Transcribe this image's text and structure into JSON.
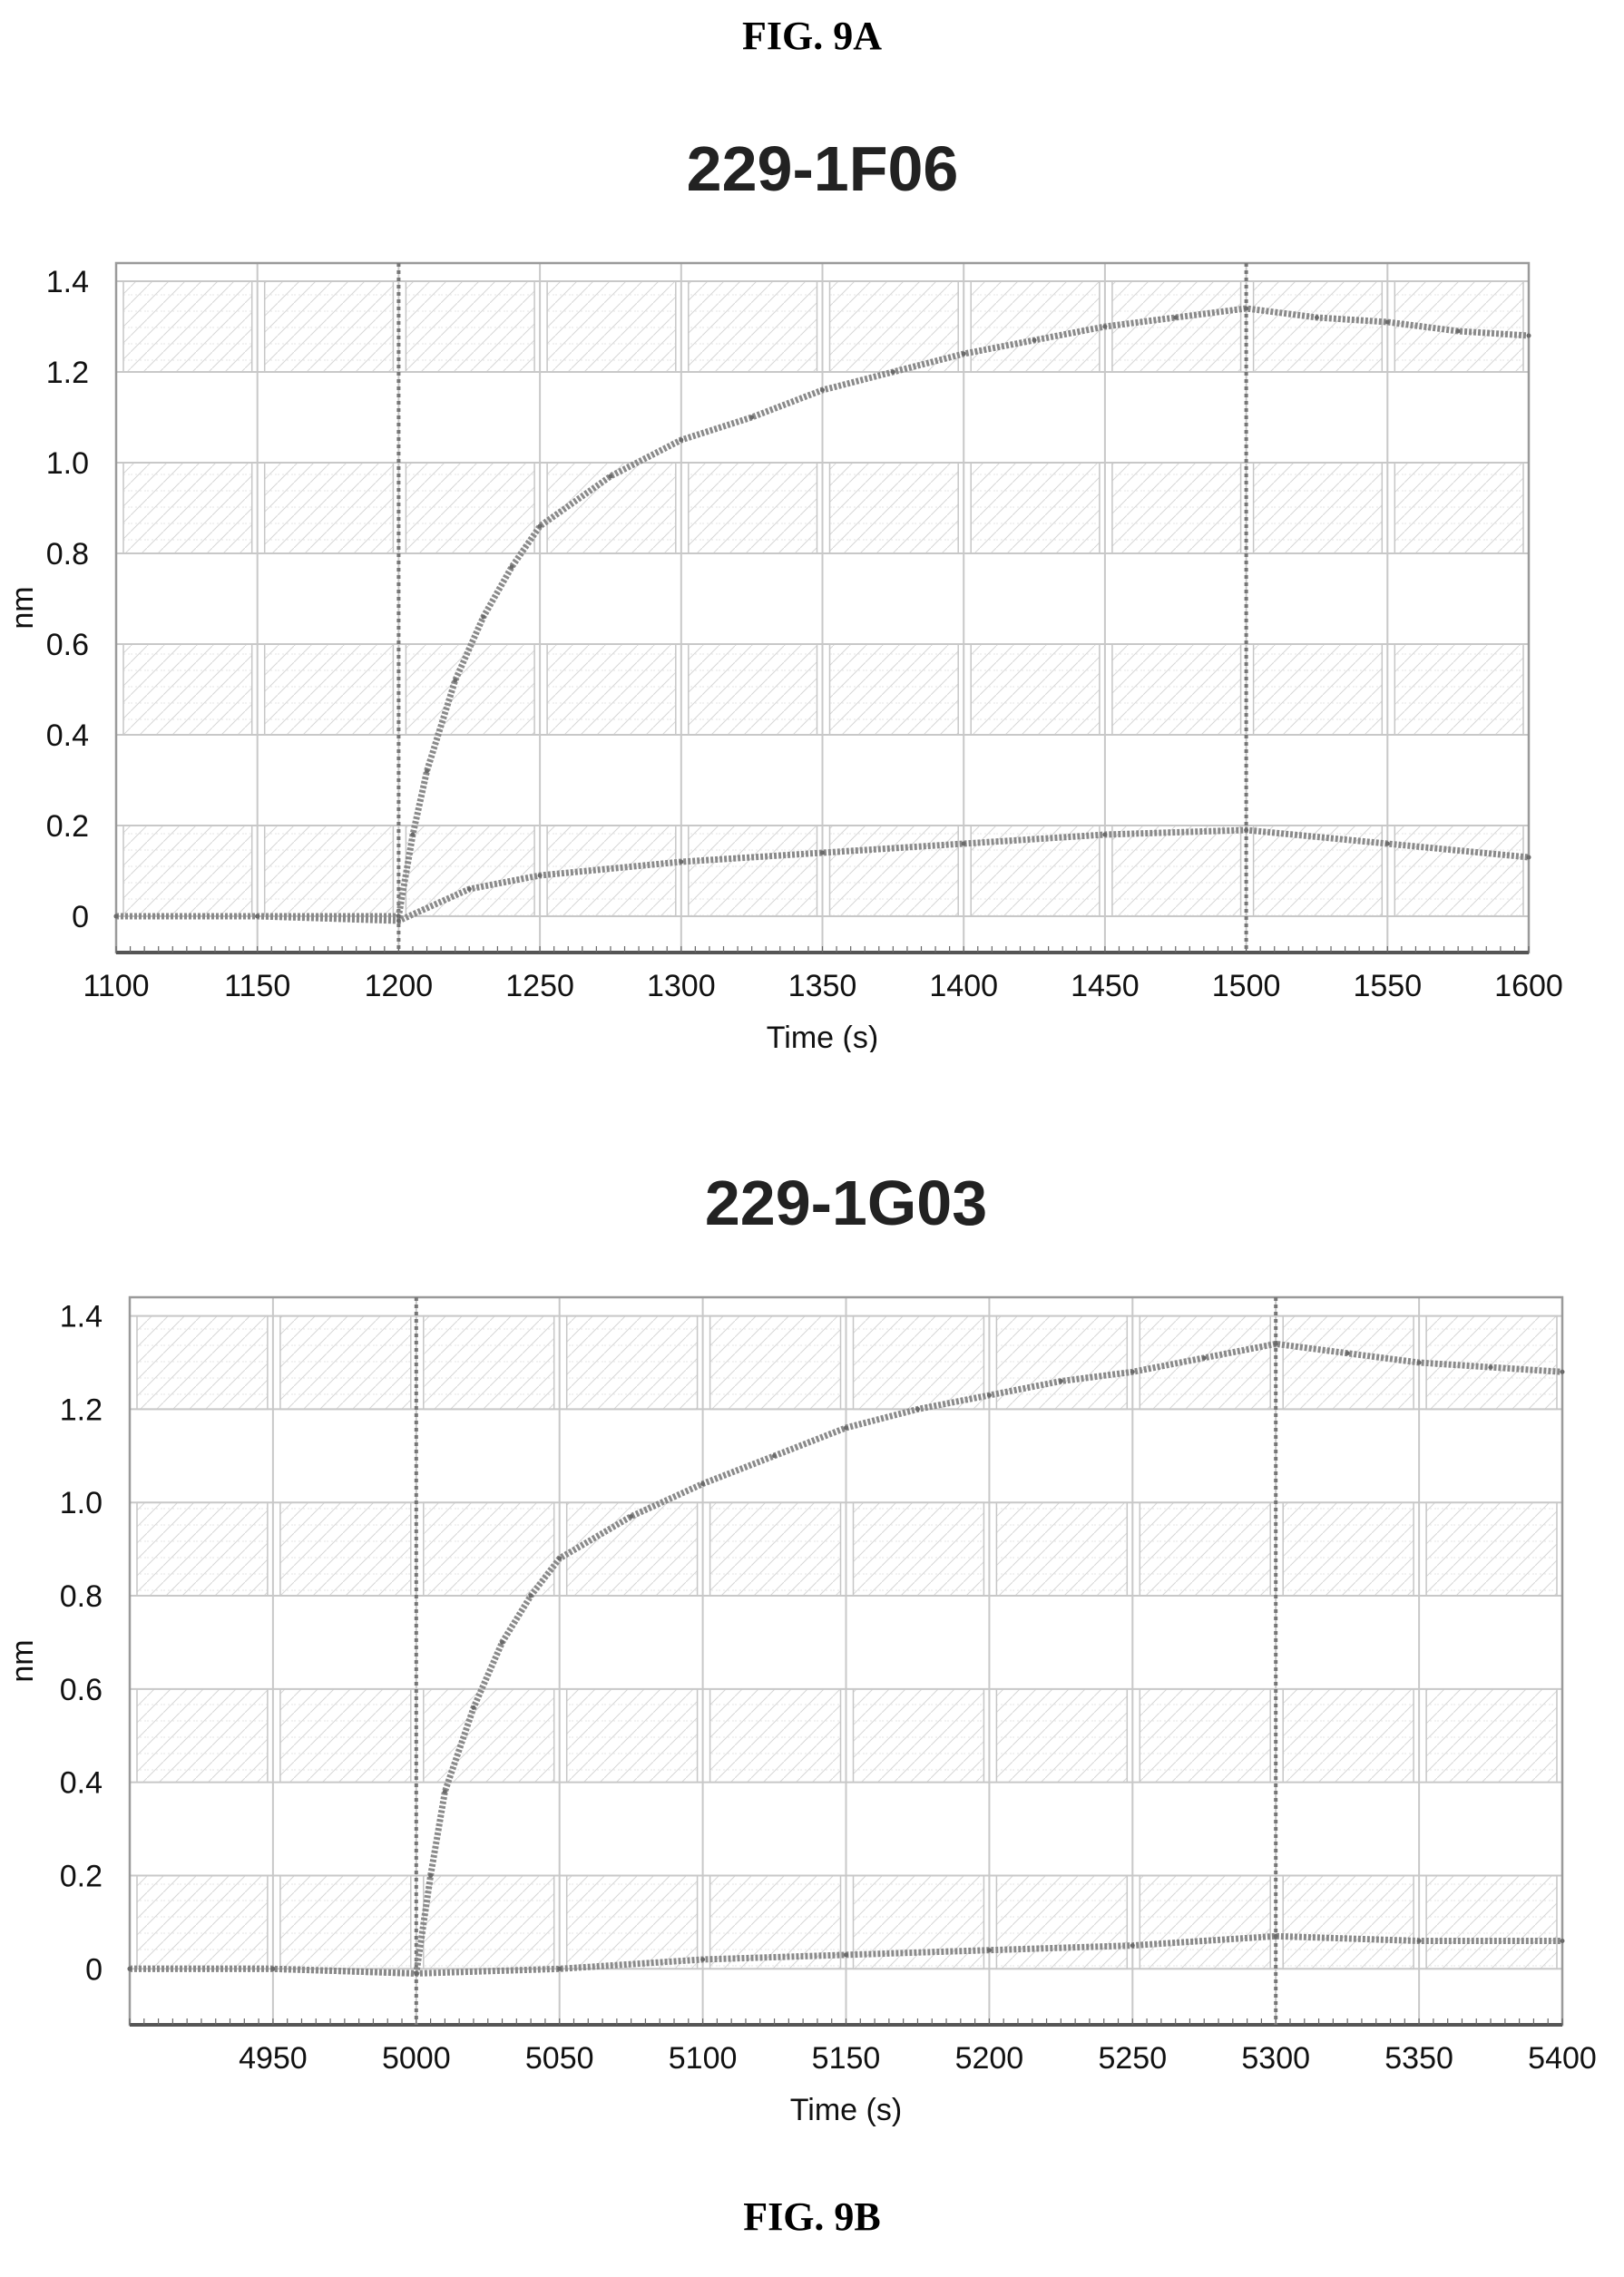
{
  "figure_labels": {
    "top": "FIG. 9A",
    "bottom": "FIG. 9B"
  },
  "chart_data": [
    {
      "type": "line",
      "title": "229-1F06",
      "xlabel": "Time (s)",
      "ylabel": "nm",
      "xlim": [
        1100,
        1600
      ],
      "ylim": [
        -0.08,
        1.44
      ],
      "xticks": [
        1100,
        1150,
        1200,
        1250,
        1300,
        1350,
        1400,
        1450,
        1500,
        1550,
        1600
      ],
      "xtick_labels": [
        "1100",
        "1150",
        "1200",
        "1250",
        "1300",
        "1350",
        "1400",
        "1450",
        "1500",
        "1550",
        "1600"
      ],
      "yticks": [
        0,
        0.2,
        0.4,
        0.6,
        0.8,
        1.0,
        1.2,
        1.4
      ],
      "ytick_labels": [
        "0",
        "0.2",
        "0.4",
        "0.6",
        "0.8",
        "1.0",
        "1.2",
        "1.4"
      ],
      "grid": true,
      "vlines": [
        1200,
        1500
      ],
      "series": [
        {
          "x": [
            1100,
            1150,
            1200,
            1205,
            1210,
            1220,
            1230,
            1240,
            1250,
            1275,
            1300,
            1325,
            1350,
            1375,
            1400,
            1425,
            1450,
            1475,
            1500,
            1525,
            1550,
            1575,
            1600
          ],
          "y": [
            0.0,
            0.0,
            0.0,
            0.18,
            0.32,
            0.52,
            0.66,
            0.77,
            0.86,
            0.97,
            1.05,
            1.1,
            1.16,
            1.2,
            1.24,
            1.27,
            1.3,
            1.32,
            1.34,
            1.32,
            1.31,
            1.29,
            1.28
          ]
        },
        {
          "x": [
            1100,
            1150,
            1200,
            1225,
            1250,
            1300,
            1350,
            1400,
            1450,
            1500,
            1550,
            1600
          ],
          "y": [
            0.0,
            0.0,
            -0.01,
            0.06,
            0.09,
            0.12,
            0.14,
            0.16,
            0.18,
            0.19,
            0.16,
            0.13
          ]
        }
      ]
    },
    {
      "type": "line",
      "title": "229-1G03",
      "xlabel": "Time (s)",
      "ylabel": "nm",
      "xlim": [
        4900,
        5400
      ],
      "ylim": [
        -0.12,
        1.44
      ],
      "xticks": [
        4950,
        5000,
        5050,
        5100,
        5150,
        5200,
        5250,
        5300,
        5350,
        5400
      ],
      "xtick_labels": [
        "4950",
        "5000",
        "5050",
        "5100",
        "5150",
        "5200",
        "5250",
        "5300",
        "5350",
        "5400"
      ],
      "yticks": [
        0,
        0.2,
        0.4,
        0.6,
        0.8,
        1.0,
        1.2,
        1.4
      ],
      "ytick_labels": [
        "0",
        "0.2",
        "0.4",
        "0.6",
        "0.8",
        "1.0",
        "1.2",
        "1.4"
      ],
      "grid": true,
      "vlines": [
        5000,
        5300
      ],
      "series": [
        {
          "x": [
            4900,
            4950,
            5000,
            5005,
            5010,
            5020,
            5030,
            5040,
            5050,
            5075,
            5100,
            5125,
            5150,
            5175,
            5200,
            5225,
            5250,
            5275,
            5300,
            5325,
            5350,
            5375,
            5400
          ],
          "y": [
            0.0,
            0.0,
            -0.01,
            0.2,
            0.38,
            0.56,
            0.7,
            0.8,
            0.88,
            0.97,
            1.04,
            1.1,
            1.16,
            1.2,
            1.23,
            1.26,
            1.28,
            1.31,
            1.34,
            1.32,
            1.3,
            1.29,
            1.28
          ]
        },
        {
          "x": [
            4900,
            4950,
            5000,
            5050,
            5100,
            5150,
            5200,
            5250,
            5300,
            5350,
            5400
          ],
          "y": [
            0.0,
            0.0,
            -0.01,
            0.0,
            0.02,
            0.03,
            0.04,
            0.05,
            0.07,
            0.06,
            0.06
          ]
        }
      ]
    }
  ]
}
